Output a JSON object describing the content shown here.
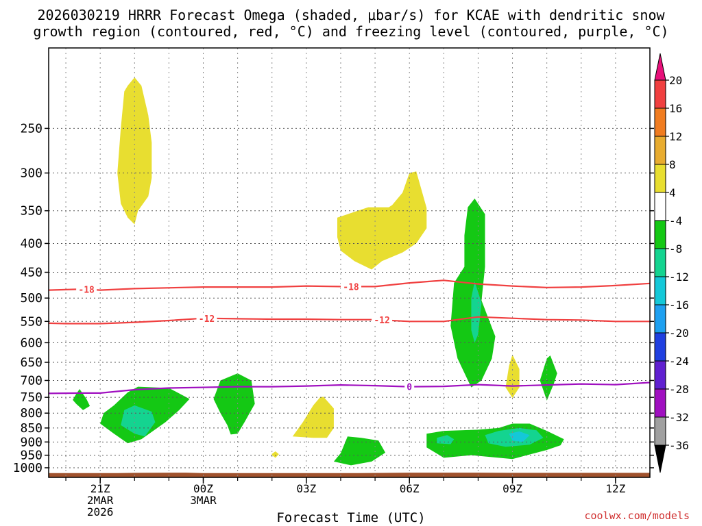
{
  "chart_data": {
    "type": "contour",
    "title_line1": "2026030219 HRRR Forecast Omega (shaded, μbar/s) for KCAE with dendritic snow",
    "title_line2": "growth region (contoured, red, °C) and freezing level (contoured, purple, °C)",
    "xlabel": "Forecast Time (UTC)",
    "watermark": "coolwx.com/models",
    "xlim": [
      19.5,
      37.0
    ],
    "ylim": [
      1040,
      180
    ],
    "y_scale": "log-pressure",
    "x_ticks": [
      {
        "hour": 21,
        "lines": [
          "21Z",
          "2MAR",
          "2026"
        ]
      },
      {
        "hour": 24,
        "lines": [
          "00Z",
          "3MAR"
        ]
      },
      {
        "hour": 27,
        "lines": [
          "03Z"
        ]
      },
      {
        "hour": 30,
        "lines": [
          "06Z"
        ]
      },
      {
        "hour": 33,
        "lines": [
          "09Z"
        ]
      },
      {
        "hour": 36,
        "lines": [
          "12Z"
        ]
      }
    ],
    "y_ticks": [
      250,
      300,
      350,
      400,
      450,
      500,
      550,
      600,
      650,
      700,
      750,
      800,
      850,
      900,
      950,
      1000
    ],
    "colorbar": {
      "levels": [
        20,
        16,
        12,
        8,
        4,
        -4,
        -8,
        -12,
        -16,
        -20,
        -24,
        -28,
        -32,
        -36
      ],
      "colors": [
        "#f04040",
        "#f07c20",
        "#e8ac30",
        "#e8de30",
        "#ffffff",
        "#14c814",
        "#14d490",
        "#14c8d8",
        "#1ea0f0",
        "#2040e0",
        "#6020d0",
        "#a010c0",
        "#a0a0a0"
      ],
      "top_arrow_color": "#e8107a",
      "bottom_arrow_color": "#000000"
    },
    "contours": [
      {
        "name": "dgz-top",
        "label": "-18",
        "color": "#f04040",
        "points": [
          [
            19.5,
            484
          ],
          [
            20.5,
            482
          ],
          [
            21,
            484
          ],
          [
            22,
            481
          ],
          [
            24,
            478
          ],
          [
            26,
            478
          ],
          [
            27,
            476
          ],
          [
            28,
            477
          ],
          [
            29,
            477
          ],
          [
            30,
            470
          ],
          [
            31,
            465
          ],
          [
            32,
            472
          ],
          [
            33,
            476
          ],
          [
            34,
            479
          ],
          [
            35,
            478
          ],
          [
            36,
            475
          ],
          [
            37,
            471
          ]
        ],
        "label_positions": [
          20.6,
          28.3
        ]
      },
      {
        "name": "dgz-bottom",
        "label": "-12",
        "color": "#f04040",
        "points": [
          [
            19.5,
            554
          ],
          [
            20,
            555
          ],
          [
            21,
            555
          ],
          [
            22,
            552
          ],
          [
            23,
            548
          ],
          [
            24,
            543
          ],
          [
            25,
            544
          ],
          [
            26,
            545
          ],
          [
            27,
            545
          ],
          [
            28,
            546
          ],
          [
            29,
            546
          ],
          [
            30,
            550
          ],
          [
            31,
            550
          ],
          [
            32,
            540
          ],
          [
            33,
            543
          ],
          [
            34,
            546
          ],
          [
            35,
            547
          ],
          [
            36,
            550
          ],
          [
            37,
            550
          ]
        ],
        "label_positions": [
          24.1,
          29.2
        ]
      },
      {
        "name": "freezing-level",
        "label": "0",
        "color": "#a010c0",
        "points": [
          [
            19.5,
            738
          ],
          [
            20.5,
            737
          ],
          [
            21,
            737
          ],
          [
            22,
            727
          ],
          [
            23,
            722
          ],
          [
            24,
            720
          ],
          [
            25,
            718
          ],
          [
            26,
            718
          ],
          [
            27,
            716
          ],
          [
            28,
            713
          ],
          [
            29,
            715
          ],
          [
            30,
            718
          ],
          [
            31,
            717
          ],
          [
            32,
            712
          ],
          [
            33,
            716
          ],
          [
            34,
            713
          ],
          [
            35,
            710
          ],
          [
            36,
            712
          ],
          [
            37,
            706
          ]
        ],
        "label_positions": [
          30.0
        ]
      }
    ],
    "shaded_regions": [
      {
        "value_range": "4 to 8",
        "color": "#e8de30",
        "points": [
          [
            21.7,
            215
          ],
          [
            21.8,
            210
          ],
          [
            22.0,
            203
          ],
          [
            22.2,
            210
          ],
          [
            22.4,
            237
          ],
          [
            22.5,
            265
          ],
          [
            22.5,
            306
          ],
          [
            22.4,
            330
          ],
          [
            22.1,
            350
          ],
          [
            22.0,
            370
          ],
          [
            21.8,
            360
          ],
          [
            21.6,
            340
          ],
          [
            21.5,
            300
          ],
          [
            21.6,
            250
          ]
        ]
      },
      {
        "value_range": "4 to 8",
        "color": "#e8de30",
        "points": [
          [
            28.8,
            345
          ],
          [
            29.4,
            345
          ],
          [
            29.5,
            342
          ],
          [
            29.8,
            325
          ],
          [
            30.0,
            300
          ],
          [
            30.2,
            298
          ],
          [
            30.5,
            346
          ],
          [
            30.5,
            376
          ],
          [
            30.2,
            400
          ],
          [
            29.8,
            415
          ],
          [
            29.2,
            430
          ],
          [
            28.9,
            445
          ],
          [
            28.4,
            430
          ],
          [
            28.0,
            412
          ],
          [
            27.9,
            390
          ],
          [
            27.9,
            360
          ]
        ]
      },
      {
        "value_range": "4 to 8",
        "color": "#e8de30",
        "points": [
          [
            27.2,
            775
          ],
          [
            27.4,
            750
          ],
          [
            27.5,
            748
          ],
          [
            27.8,
            785
          ],
          [
            27.8,
            850
          ],
          [
            27.6,
            885
          ],
          [
            27.2,
            885
          ],
          [
            26.6,
            880
          ],
          [
            26.9,
            830
          ]
        ]
      },
      {
        "value_range": "4 to 8",
        "color": "#e8de30",
        "points": [
          [
            26.0,
            945
          ],
          [
            26.1,
            935
          ],
          [
            26.2,
            946
          ],
          [
            26.1,
            960
          ],
          [
            26.0,
            950
          ]
        ]
      },
      {
        "value_range": "4 to 8",
        "color": "#e8de30",
        "points": [
          [
            32.9,
            660
          ],
          [
            33.0,
            630
          ],
          [
            33.2,
            668
          ],
          [
            33.2,
            720
          ],
          [
            33.0,
            752
          ],
          [
            32.8,
            720
          ]
        ]
      },
      {
        "value_range": "-4 to -8",
        "color": "#14c814",
        "points": [
          [
            20.3,
            740
          ],
          [
            20.4,
            725
          ],
          [
            20.6,
            755
          ],
          [
            20.7,
            777
          ],
          [
            20.5,
            790
          ],
          [
            20.3,
            770
          ],
          [
            20.2,
            758
          ]
        ]
      },
      {
        "value_range": "-4 to -8",
        "color": "#14c814",
        "points": [
          [
            21.1,
            800
          ],
          [
            21.4,
            775
          ],
          [
            21.8,
            735
          ],
          [
            22.1,
            718
          ],
          [
            23.0,
            722
          ],
          [
            23.6,
            755
          ],
          [
            23.3,
            790
          ],
          [
            22.9,
            830
          ],
          [
            22.2,
            890
          ],
          [
            21.8,
            905
          ],
          [
            21.4,
            870
          ],
          [
            21.0,
            835
          ]
        ]
      },
      {
        "value_range": "-4 to -8",
        "color": "#14c814",
        "points": [
          [
            24.3,
            755
          ],
          [
            24.5,
            700
          ],
          [
            25.0,
            680
          ],
          [
            25.4,
            700
          ],
          [
            25.5,
            770
          ],
          [
            25.2,
            830
          ],
          [
            25.0,
            870
          ],
          [
            24.8,
            873
          ],
          [
            24.7,
            840
          ],
          [
            24.5,
            800
          ]
        ]
      },
      {
        "value_range": "-4 to -8",
        "color": "#14c814",
        "points": [
          [
            28.0,
            942
          ],
          [
            28.2,
            880
          ],
          [
            28.6,
            885
          ],
          [
            29.1,
            895
          ],
          [
            29.3,
            940
          ],
          [
            28.9,
            975
          ],
          [
            28.3,
            990
          ],
          [
            27.8,
            975
          ]
        ]
      },
      {
        "value_range": "-4 to -8",
        "color": "#14c814",
        "points": [
          [
            31.6,
            387
          ],
          [
            31.7,
            345
          ],
          [
            31.9,
            333
          ],
          [
            32.2,
            355
          ],
          [
            32.2,
            440
          ],
          [
            32.1,
            505
          ],
          [
            32.5,
            585
          ],
          [
            32.4,
            640
          ],
          [
            32.1,
            700
          ],
          [
            31.8,
            720
          ],
          [
            31.4,
            640
          ],
          [
            31.2,
            560
          ],
          [
            31.3,
            470
          ],
          [
            31.6,
            440
          ]
        ]
      },
      {
        "value_range": "-4 to -8",
        "color": "#14c814",
        "points": [
          [
            30.5,
            870
          ],
          [
            31.0,
            860
          ],
          [
            32.0,
            856
          ],
          [
            32.6,
            850
          ],
          [
            33.0,
            835
          ],
          [
            33.5,
            835
          ],
          [
            34.0,
            860
          ],
          [
            34.5,
            890
          ],
          [
            34.4,
            912
          ],
          [
            34.0,
            930
          ],
          [
            33.0,
            965
          ],
          [
            32.6,
            960
          ],
          [
            31.8,
            950
          ],
          [
            31.0,
            960
          ],
          [
            30.5,
            920
          ]
        ]
      },
      {
        "value_range": "-4 to -8",
        "color": "#14c814",
        "points": [
          [
            34.0,
            640
          ],
          [
            34.1,
            632
          ],
          [
            34.3,
            680
          ],
          [
            34.2,
            710
          ],
          [
            34.0,
            760
          ],
          [
            33.8,
            700
          ]
        ]
      },
      {
        "value_range": "-8 to -12",
        "color": "#14d490",
        "points": [
          [
            21.7,
            790
          ],
          [
            22.0,
            775
          ],
          [
            22.5,
            795
          ],
          [
            22.6,
            830
          ],
          [
            22.3,
            880
          ],
          [
            22.0,
            870
          ],
          [
            21.6,
            840
          ]
        ]
      },
      {
        "value_range": "-8 to -12",
        "color": "#14d490",
        "points": [
          [
            31.8,
            500
          ],
          [
            31.9,
            467
          ],
          [
            32.1,
            510
          ],
          [
            32.0,
            580
          ],
          [
            31.9,
            600
          ],
          [
            31.8,
            570
          ]
        ]
      },
      {
        "value_range": "-8 to -12",
        "color": "#14d490",
        "points": [
          [
            30.8,
            885
          ],
          [
            31.1,
            875
          ],
          [
            31.3,
            890
          ],
          [
            31.2,
            908
          ],
          [
            30.8,
            905
          ]
        ]
      },
      {
        "value_range": "-8 to -12",
        "color": "#14d490",
        "points": [
          [
            32.2,
            875
          ],
          [
            32.6,
            860
          ],
          [
            33.2,
            850
          ],
          [
            33.7,
            858
          ],
          [
            33.9,
            885
          ],
          [
            33.5,
            910
          ],
          [
            32.8,
            918
          ],
          [
            32.3,
            905
          ]
        ]
      },
      {
        "value_range": "-12 to -16",
        "color": "#14c8d8",
        "points": [
          [
            32.9,
            870
          ],
          [
            33.2,
            862
          ],
          [
            33.5,
            875
          ],
          [
            33.3,
            900
          ],
          [
            33.0,
            895
          ]
        ]
      }
    ],
    "terrain": {
      "color": "#a0522d",
      "points": [
        [
          19.5,
          1022
        ],
        [
          21.5,
          1022
        ],
        [
          22.0,
          1021
        ],
        [
          23.5,
          1020
        ],
        [
          24.0,
          1022
        ],
        [
          28.5,
          1022
        ],
        [
          30.0,
          1020
        ],
        [
          31.0,
          1020
        ],
        [
          32.0,
          1020
        ],
        [
          33.0,
          1021
        ],
        [
          36.0,
          1021
        ],
        [
          37.0,
          1021
        ]
      ]
    }
  }
}
